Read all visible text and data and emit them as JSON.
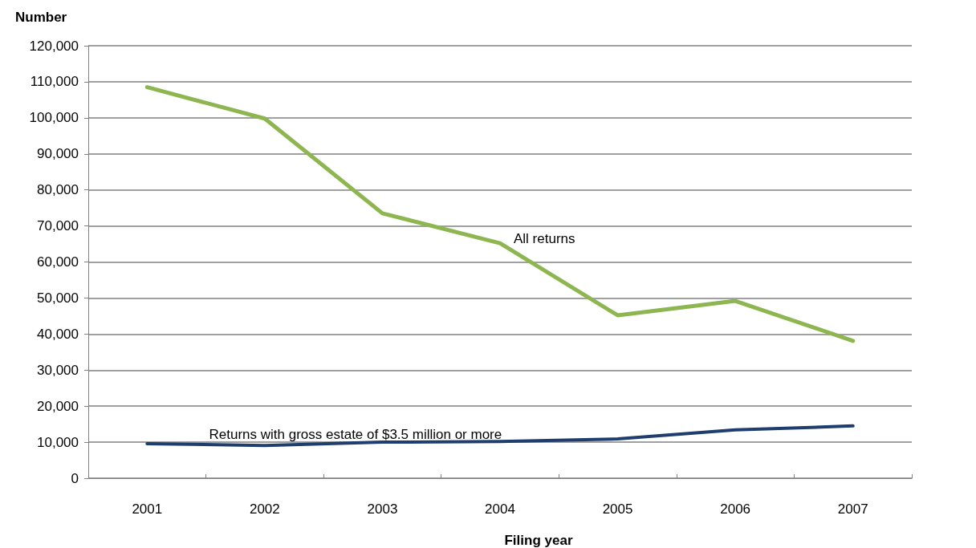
{
  "chart_data": {
    "type": "line",
    "ylabel": "Number",
    "xlabel": "Filing year",
    "categories": [
      "2001",
      "2002",
      "2003",
      "2004",
      "2005",
      "2006",
      "2007"
    ],
    "series": [
      {
        "name": "All returns",
        "color": "#8db650",
        "values": [
          108500,
          99800,
          73500,
          65200,
          45200,
          49200,
          38100
        ]
      },
      {
        "name": "Returns with gross estate of $3.5 million or more",
        "color": "#1f3d6e",
        "values": [
          9600,
          9100,
          10000,
          10200,
          10900,
          13400,
          14500
        ]
      }
    ],
    "ylim": [
      0,
      120000
    ],
    "yticks": [
      0,
      {
        "value": 10000,
        "label": "10,000"
      },
      {
        "value": 20000,
        "label": "20,000"
      },
      {
        "value": 30000,
        "label": "30,000"
      },
      {
        "value": 40000,
        "label": "40,000"
      },
      {
        "value": 50000,
        "label": "50,000"
      },
      {
        "value": 60000,
        "label": "60,000"
      },
      {
        "value": 70000,
        "label": "70,000"
      },
      {
        "value": 80000,
        "label": "80,000"
      },
      {
        "value": 90000,
        "label": "90,000"
      },
      {
        "value": 100000,
        "label": "100,000"
      },
      {
        "value": 110000,
        "label": "110,000"
      },
      {
        "value": 120000,
        "label": "120,000"
      }
    ],
    "grid": "y",
    "legend": false,
    "marker": "none",
    "line_style": "solid"
  }
}
